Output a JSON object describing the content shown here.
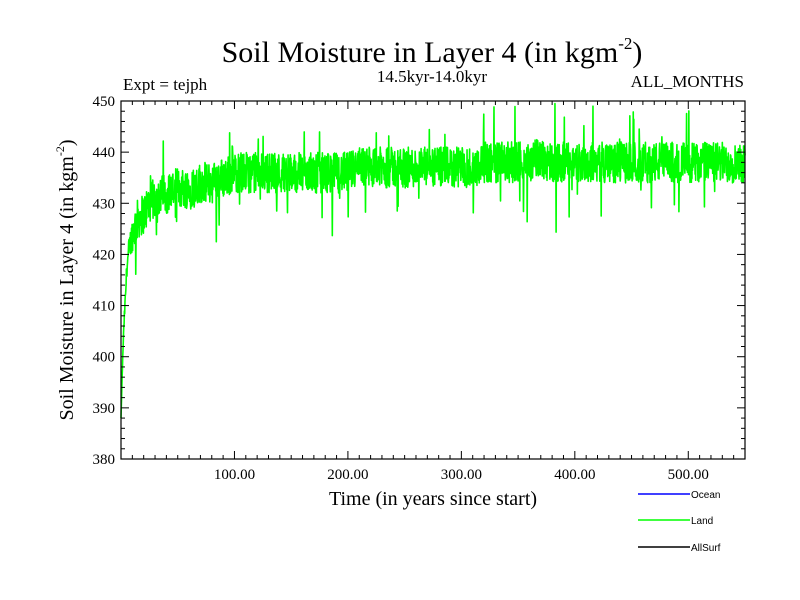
{
  "chart_data": {
    "type": "line",
    "title": "Soil Moisture in Layer 4 (in kgm",
    "title_sup": "-2",
    "title_close": ")",
    "subtitle_left": "Expt = tejph",
    "subtitle_center": "14.5kyr-14.0kyr",
    "subtitle_right": "ALL_MONTHS",
    "xlabel": "Time (in years since start)",
    "ylabel": "Soil Moisture in Layer 4 (in kgm",
    "ylabel_sup": "-2",
    "ylabel_close": ")",
    "xlim": [
      0,
      550
    ],
    "ylim": [
      380,
      450
    ],
    "x_ticks": [
      100,
      200,
      300,
      400,
      500
    ],
    "x_tick_labels": [
      "100.00",
      "200.00",
      "300.00",
      "400.00",
      "500.00"
    ],
    "y_ticks": [
      380,
      390,
      400,
      410,
      420,
      430,
      440,
      450
    ],
    "y_tick_labels": [
      "380",
      "390",
      "400",
      "410",
      "420",
      "430",
      "440",
      "450"
    ],
    "legend_placement": "bottom-right, outside plot",
    "series": [
      {
        "name": "Ocean",
        "color": "#0000ff",
        "x": [],
        "y": []
      },
      {
        "name": "Land",
        "color": "#00ff00",
        "x": [
          0,
          1,
          2,
          3,
          4,
          5,
          7,
          10,
          15,
          20,
          25,
          30,
          40,
          50,
          60,
          70,
          80,
          90,
          100,
          110,
          120,
          130,
          140,
          150,
          160,
          170,
          180,
          190,
          200,
          210,
          220,
          230,
          240,
          250,
          260,
          270,
          280,
          290,
          300,
          310,
          320,
          330,
          340,
          350,
          360,
          370,
          380,
          390,
          400,
          410,
          420,
          430,
          440,
          450,
          460,
          470,
          480,
          490,
          500,
          510,
          520,
          530,
          540,
          550
        ],
        "y": [
          388,
          396,
          403,
          408,
          412,
          417,
          421,
          424,
          427,
          428,
          430,
          431,
          432,
          433,
          433,
          434,
          434,
          435,
          436,
          436,
          436,
          436,
          436,
          436,
          436,
          436,
          436,
          436,
          436,
          437,
          437,
          437,
          437,
          437,
          437,
          437,
          437,
          437,
          437,
          437,
          438,
          438,
          438,
          438,
          438,
          439,
          438,
          438,
          438,
          438,
          438,
          438,
          438,
          438,
          438,
          438,
          438,
          438,
          438,
          438,
          438,
          438,
          438,
          438
        ],
        "variability_amplitude": 4
      },
      {
        "name": "AllSurf",
        "color": "#000000",
        "x": [],
        "y": []
      }
    ]
  }
}
